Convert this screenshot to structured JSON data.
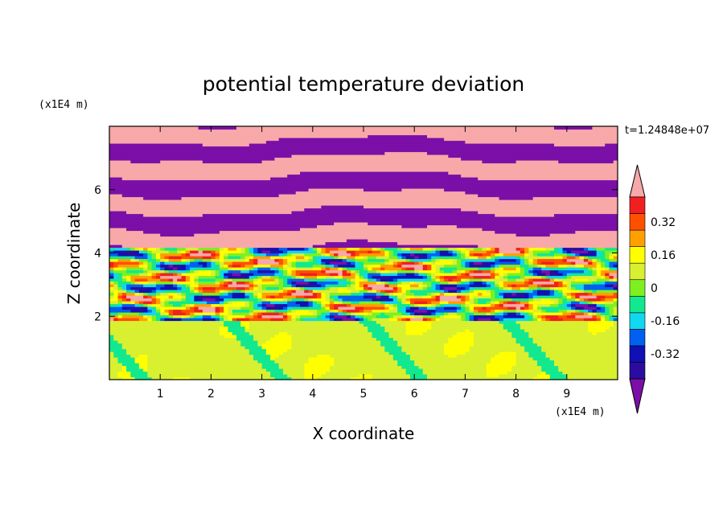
{
  "chart_data": {
    "type": "heatmap",
    "title": "potential temperature deviation",
    "xlabel": "X coordinate",
    "ylabel": "Z coordinate",
    "x_unit": "(x1E4 m)",
    "y_unit": "(x1E4 m)",
    "time_label": "t=1.24848e+07",
    "xlim": [
      0,
      10
    ],
    "ylim": [
      0,
      8
    ],
    "x_ticks": [
      "1",
      "2",
      "3",
      "4",
      "5",
      "6",
      "7",
      "8",
      "9"
    ],
    "y_ticks": [
      "2",
      "4",
      "6"
    ],
    "colorbar": {
      "levels": [
        -0.48,
        -0.4,
        -0.32,
        -0.24,
        -0.16,
        -0.08,
        0,
        0.08,
        0.16,
        0.24,
        0.32,
        0.4,
        0.48
      ],
      "colors": [
        "#7b0fa8",
        "#2a0da0",
        "#1010b4",
        "#0060f0",
        "#10d8f0",
        "#12e890",
        "#7ef020",
        "#d8f030",
        "#ffff00",
        "#ffa000",
        "#ff5000",
        "#f02020",
        "#f8a8a8"
      ],
      "tick_labels": [
        "0.32",
        "0.16",
        "0",
        "-0.16",
        "-0.32"
      ],
      "extend": "both"
    }
  }
}
